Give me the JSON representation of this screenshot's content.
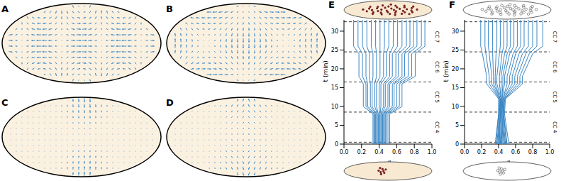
{
  "chart_data": [
    {
      "type": "quiver",
      "title": "A"
    },
    {
      "type": "quiver",
      "title": "B"
    },
    {
      "type": "quiver",
      "title": "C"
    },
    {
      "type": "quiver",
      "title": "D"
    },
    {
      "type": "line",
      "title": "E",
      "x_label": "x/L",
      "y_label": "t (min)",
      "xlim": [
        0,
        1
      ],
      "xticks": [
        {
          "value": 0,
          "label": "0.0"
        },
        {
          "value": 0.2,
          "label": "0.2"
        },
        {
          "value": 0.4,
          "label": "0.4"
        },
        {
          "value": 0.6,
          "label": "0.6"
        },
        {
          "value": 0.8,
          "label": "0.8"
        },
        {
          "value": 1,
          "label": "1.0"
        }
      ],
      "ylim": [
        0,
        33
      ],
      "yticks": [
        0,
        5,
        10,
        15,
        20,
        25,
        30
      ],
      "color": "#3a86c4",
      "cycle_boundaries": [
        0.5,
        8.5,
        16.5,
        24.5,
        32.5
      ],
      "cycle_labels": [
        "CC 4",
        "CC 5",
        "CC 6",
        "CC 7"
      ],
      "t": [
        0,
        8,
        10,
        16,
        18,
        24,
        26,
        33
      ],
      "series": [
        {
          "values": [
            0.33,
            0.33,
            0.22,
            0.22,
            0.17,
            0.17,
            0.11,
            0.11
          ]
        },
        {
          "values": [
            0.34,
            0.34,
            0.25,
            0.25,
            0.21,
            0.21,
            0.16,
            0.16
          ]
        },
        {
          "values": [
            0.35,
            0.35,
            0.27,
            0.27,
            0.25,
            0.25,
            0.21,
            0.21
          ]
        },
        {
          "values": [
            0.36,
            0.36,
            0.3,
            0.3,
            0.29,
            0.29,
            0.26,
            0.26
          ]
        },
        {
          "values": [
            0.37,
            0.37,
            0.32,
            0.32,
            0.33,
            0.33,
            0.31,
            0.31
          ]
        },
        {
          "values": [
            0.38,
            0.38,
            0.35,
            0.35,
            0.37,
            0.37,
            0.36,
            0.36
          ]
        },
        {
          "values": [
            0.39,
            0.39,
            0.37,
            0.37,
            0.41,
            0.41,
            0.41,
            0.41
          ]
        },
        {
          "values": [
            0.4,
            0.4,
            0.4,
            0.4,
            0.45,
            0.45,
            0.46,
            0.46
          ]
        },
        {
          "values": [
            0.41,
            0.41,
            0.42,
            0.42,
            0.48,
            0.48,
            0.51,
            0.51
          ]
        },
        {
          "values": [
            0.42,
            0.42,
            0.45,
            0.45,
            0.52,
            0.52,
            0.56,
            0.56
          ]
        },
        {
          "values": [
            0.43,
            0.43,
            0.47,
            0.47,
            0.55,
            0.55,
            0.61,
            0.61
          ]
        },
        {
          "values": [
            0.44,
            0.44,
            0.5,
            0.5,
            0.59,
            0.59,
            0.66,
            0.66
          ]
        },
        {
          "values": [
            0.45,
            0.45,
            0.52,
            0.52,
            0.62,
            0.62,
            0.71,
            0.71
          ]
        },
        {
          "values": [
            0.46,
            0.46,
            0.55,
            0.55,
            0.66,
            0.66,
            0.75,
            0.75
          ]
        },
        {
          "values": [
            0.47,
            0.47,
            0.57,
            0.57,
            0.69,
            0.69,
            0.79,
            0.79
          ]
        },
        {
          "values": [
            0.48,
            0.48,
            0.6,
            0.6,
            0.73,
            0.73,
            0.83,
            0.83
          ]
        },
        {
          "values": [
            0.5,
            0.5,
            0.63,
            0.63,
            0.77,
            0.77,
            0.88,
            0.88
          ]
        },
        {
          "values": [
            0.52,
            0.52,
            0.66,
            0.66,
            0.81,
            0.81,
            0.92,
            0.92
          ]
        }
      ]
    },
    {
      "type": "line",
      "title": "F",
      "x_label": "x/L",
      "y_label": "t (min)",
      "xlim": [
        0,
        1
      ],
      "xticks": [
        {
          "value": 0,
          "label": "0.0"
        },
        {
          "value": 0.2,
          "label": "0.2"
        },
        {
          "value": 0.4,
          "label": "0.4"
        },
        {
          "value": 0.6,
          "label": "0.6"
        },
        {
          "value": 0.8,
          "label": "0.8"
        },
        {
          "value": 1,
          "label": "1.0"
        }
      ],
      "ylim": [
        0,
        33
      ],
      "yticks": [
        0,
        5,
        10,
        15,
        20,
        25,
        30
      ],
      "color": "#3a86c4",
      "cycle_boundaries": [
        0.5,
        8.5,
        16.5,
        24.5,
        32.5
      ],
      "cycle_labels": [
        "CC 4",
        "CC 5",
        "CC 6",
        "CC 7"
      ],
      "t": [
        0,
        8,
        12,
        16,
        18,
        24,
        26,
        33
      ],
      "series": [
        {
          "values": [
            0.36,
            0.4,
            0.4,
            0.26,
            0.26,
            0.21,
            0.19,
            0.19
          ]
        },
        {
          "values": [
            0.37,
            0.4,
            0.41,
            0.29,
            0.29,
            0.25,
            0.24,
            0.24
          ]
        },
        {
          "values": [
            0.38,
            0.41,
            0.41,
            0.32,
            0.32,
            0.29,
            0.28,
            0.28
          ]
        },
        {
          "values": [
            0.39,
            0.41,
            0.42,
            0.34,
            0.34,
            0.33,
            0.33,
            0.33
          ]
        },
        {
          "values": [
            0.4,
            0.42,
            0.42,
            0.36,
            0.36,
            0.37,
            0.38,
            0.38
          ]
        },
        {
          "values": [
            0.4,
            0.42,
            0.43,
            0.38,
            0.38,
            0.41,
            0.42,
            0.42
          ]
        },
        {
          "values": [
            0.41,
            0.42,
            0.43,
            0.41,
            0.41,
            0.44,
            0.46,
            0.46
          ]
        },
        {
          "values": [
            0.42,
            0.43,
            0.43,
            0.43,
            0.43,
            0.47,
            0.5,
            0.5
          ]
        },
        {
          "values": [
            0.43,
            0.43,
            0.44,
            0.45,
            0.45,
            0.5,
            0.54,
            0.54
          ]
        },
        {
          "values": [
            0.44,
            0.43,
            0.44,
            0.47,
            0.47,
            0.53,
            0.58,
            0.58
          ]
        },
        {
          "values": [
            0.45,
            0.44,
            0.45,
            0.5,
            0.5,
            0.57,
            0.62,
            0.62
          ]
        },
        {
          "values": [
            0.46,
            0.44,
            0.45,
            0.53,
            0.53,
            0.6,
            0.66,
            0.66
          ]
        },
        {
          "values": [
            0.47,
            0.45,
            0.46,
            0.56,
            0.56,
            0.64,
            0.7,
            0.7
          ]
        },
        {
          "values": [
            0.48,
            0.45,
            0.46,
            0.59,
            0.59,
            0.68,
            0.75,
            0.75
          ]
        },
        {
          "values": [
            0.49,
            0.46,
            0.47,
            0.62,
            0.62,
            0.72,
            0.8,
            0.8
          ]
        },
        {
          "values": [
            0.5,
            0.46,
            0.47,
            0.65,
            0.65,
            0.76,
            0.85,
            0.85
          ]
        },
        {
          "values": [
            0.52,
            0.47,
            0.48,
            0.68,
            0.68,
            0.8,
            0.92,
            0.92
          ]
        }
      ]
    }
  ]
}
